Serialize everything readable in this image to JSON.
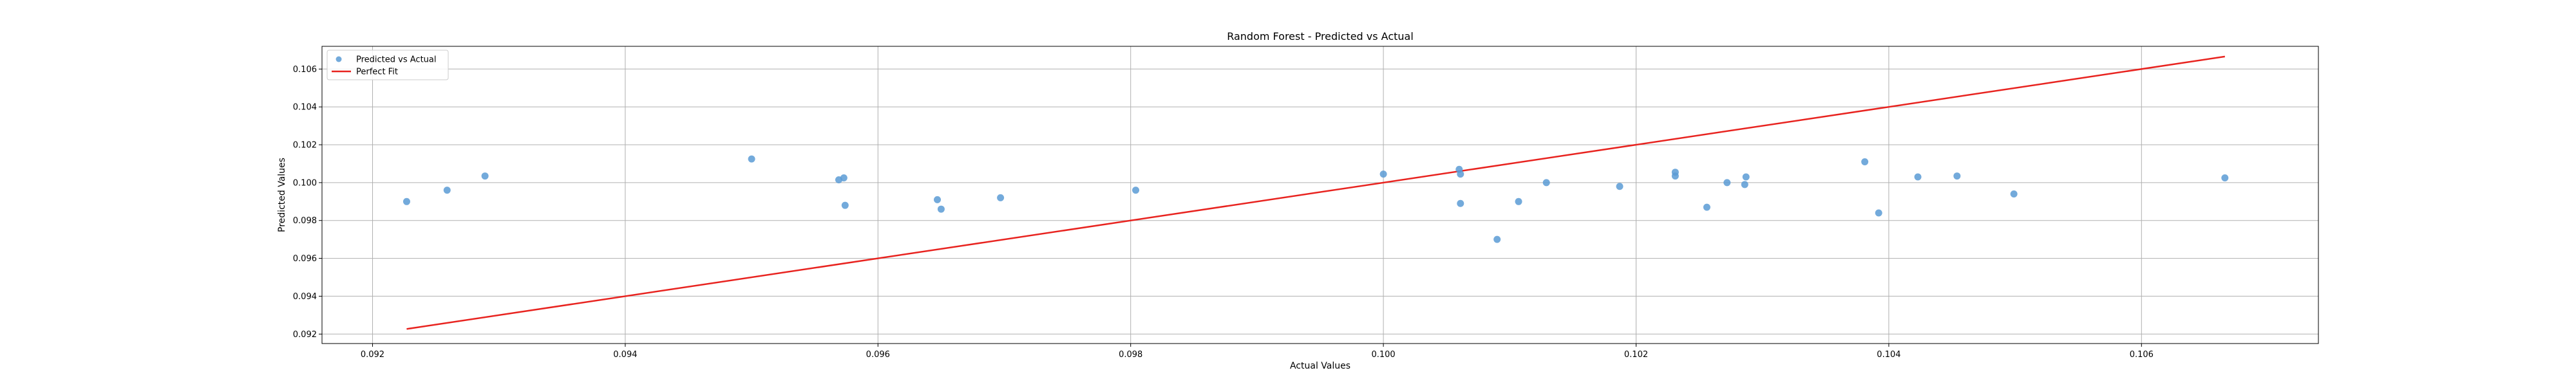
{
  "chart_data": {
    "type": "scatter",
    "title": "Random Forest - Predicted vs Actual",
    "xlabel": "Actual Values",
    "ylabel": "Predicted Values",
    "xlim": [
      0.0916,
      0.1074
    ],
    "ylim": [
      0.0915,
      0.1072
    ],
    "x_ticks": [
      "0.092",
      "0.094",
      "0.096",
      "0.098",
      "0.100",
      "0.102",
      "0.104",
      "0.106"
    ],
    "x_tick_values": [
      0.092,
      0.094,
      0.096,
      0.098,
      0.1,
      0.102,
      0.104,
      0.106
    ],
    "y_ticks": [
      "0.092",
      "0.094",
      "0.096",
      "0.098",
      "0.100",
      "0.102",
      "0.104",
      "0.106"
    ],
    "y_tick_values": [
      0.092,
      0.094,
      0.096,
      0.098,
      0.1,
      0.102,
      0.104,
      0.106
    ],
    "grid": true,
    "legend_position": "top-left",
    "legend": [
      "Predicted vs Actual",
      "Perfect Fit"
    ],
    "series": [
      {
        "name": "Predicted vs Actual",
        "kind": "scatter",
        "color": "#5b9bd5",
        "points": [
          [
            0.09227,
            0.099
          ],
          [
            0.09259,
            0.0996
          ],
          [
            0.09289,
            0.10035
          ],
          [
            0.095,
            0.10125
          ],
          [
            0.09569,
            0.10015
          ],
          [
            0.09573,
            0.10025
          ],
          [
            0.09574,
            0.0988
          ],
          [
            0.09647,
            0.0991
          ],
          [
            0.0965,
            0.0986
          ],
          [
            0.09697,
            0.0992
          ],
          [
            0.09804,
            0.0996
          ],
          [
            0.1,
            0.10045
          ],
          [
            0.1006,
            0.1007
          ],
          [
            0.10061,
            0.10045
          ],
          [
            0.10061,
            0.0989
          ],
          [
            0.1009,
            0.097
          ],
          [
            0.10107,
            0.099
          ],
          [
            0.10129,
            0.1
          ],
          [
            0.10187,
            0.0998
          ],
          [
            0.10231,
            0.10055
          ],
          [
            0.10231,
            0.10035
          ],
          [
            0.10256,
            0.0987
          ],
          [
            0.10272,
            0.1
          ],
          [
            0.10286,
            0.0999
          ],
          [
            0.10287,
            0.1003
          ],
          [
            0.10381,
            0.1011
          ],
          [
            0.10392,
            0.0984
          ],
          [
            0.10423,
            0.1003
          ],
          [
            0.10454,
            0.10035
          ],
          [
            0.10499,
            0.0994
          ],
          [
            0.10666,
            0.10025
          ]
        ]
      },
      {
        "name": "Perfect Fit",
        "kind": "line",
        "color": "#e8231f",
        "points": [
          [
            0.09227,
            0.09227
          ],
          [
            0.10666,
            0.10666
          ]
        ]
      }
    ]
  }
}
